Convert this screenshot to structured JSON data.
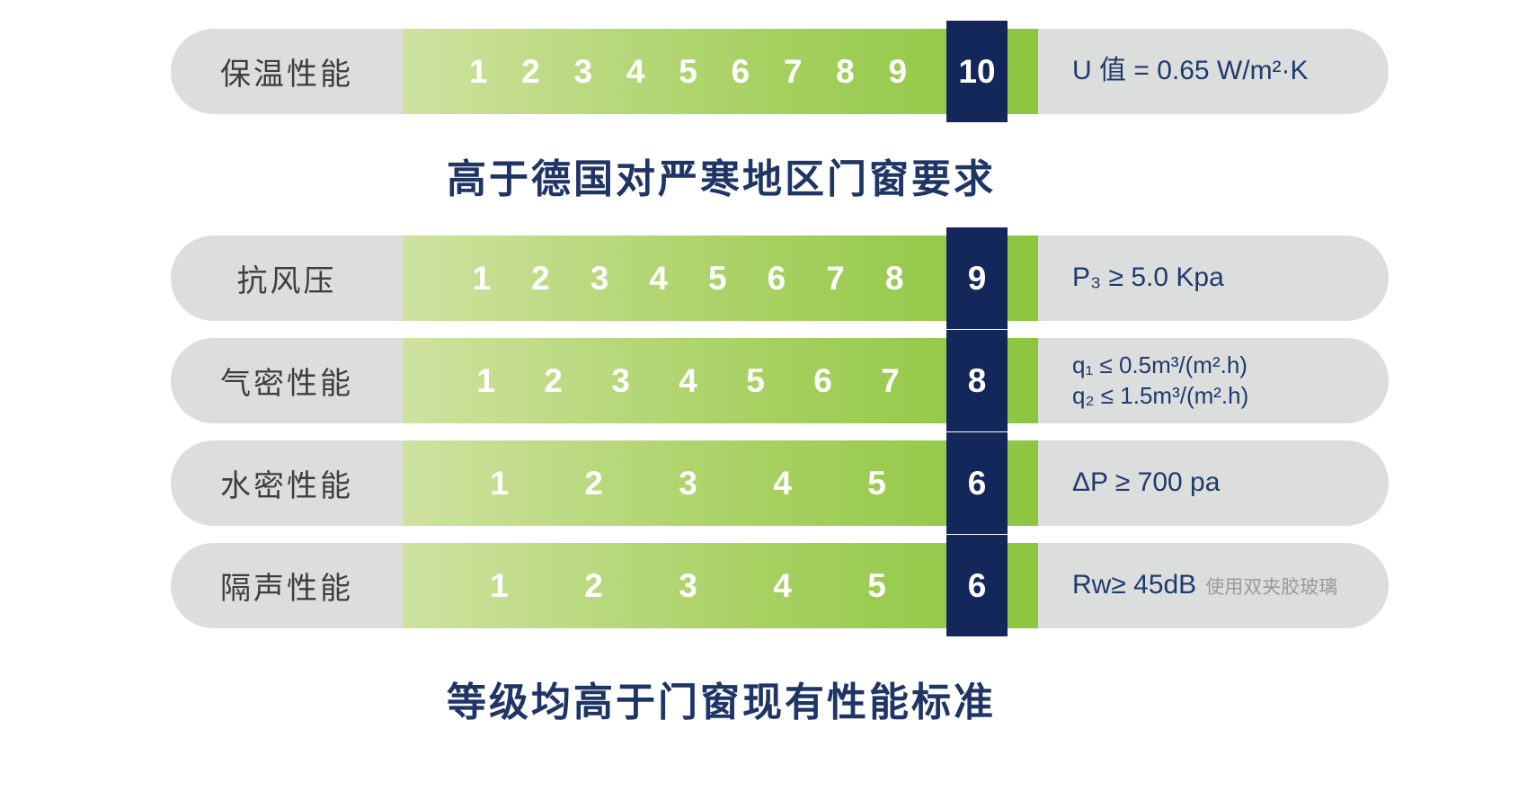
{
  "colors": {
    "track_green_start": "#cfe2a0",
    "track_green_end": "#8cc63f",
    "rating_navy": "#14275b",
    "pill_gray": "#dcdddd",
    "value_text_navy": "#1f3a6e",
    "heading_navy": "#1e3566",
    "label_gray_text": "#3e3e3e",
    "note_gray": "#9a9a9a",
    "scale_number_white": "#ffffff"
  },
  "headings": {
    "middle": "高于德国对严寒地区门窗要求",
    "bottom": "等级均高于门窗现有性能标准"
  },
  "chart_data": {
    "type": "bar",
    "subtype": "rating-scale-pills",
    "title_middle": "高于德国对严寒地区门窗要求",
    "title_bottom": "等级均高于门窗现有性能标准",
    "scale_start": 1,
    "rows": [
      {
        "category": "保温性能",
        "rating": 10,
        "scale_max": 10,
        "scale_numbers": [
          1,
          2,
          3,
          4,
          5,
          6,
          7,
          8,
          9
        ],
        "value_lines": [
          "U 值 = 0.65 W/m²·K"
        ],
        "value_note": ""
      },
      {
        "category": "抗风压",
        "rating": 9,
        "scale_max": 9,
        "scale_numbers": [
          1,
          2,
          3,
          4,
          5,
          6,
          7,
          8
        ],
        "value_lines": [
          "P₃ ≥ 5.0 Kpa"
        ],
        "value_note": ""
      },
      {
        "category": "气密性能",
        "rating": 8,
        "scale_max": 8,
        "scale_numbers": [
          1,
          2,
          3,
          4,
          5,
          6,
          7
        ],
        "value_lines": [
          "q₁ ≤ 0.5m³/(m².h)",
          "q₂ ≤ 1.5m³/(m².h)"
        ],
        "value_note": ""
      },
      {
        "category": "水密性能",
        "rating": 6,
        "scale_max": 6,
        "scale_numbers": [
          1,
          2,
          3,
          4,
          5
        ],
        "value_lines": [
          "ΔP ≥ 700 pa"
        ],
        "value_note": ""
      },
      {
        "category": "隔声性能",
        "rating": 6,
        "scale_max": 6,
        "scale_numbers": [
          1,
          2,
          3,
          4,
          5
        ],
        "value_lines": [
          "Rw≥ 45dB"
        ],
        "value_note": "使用双夹胶玻璃"
      }
    ]
  }
}
